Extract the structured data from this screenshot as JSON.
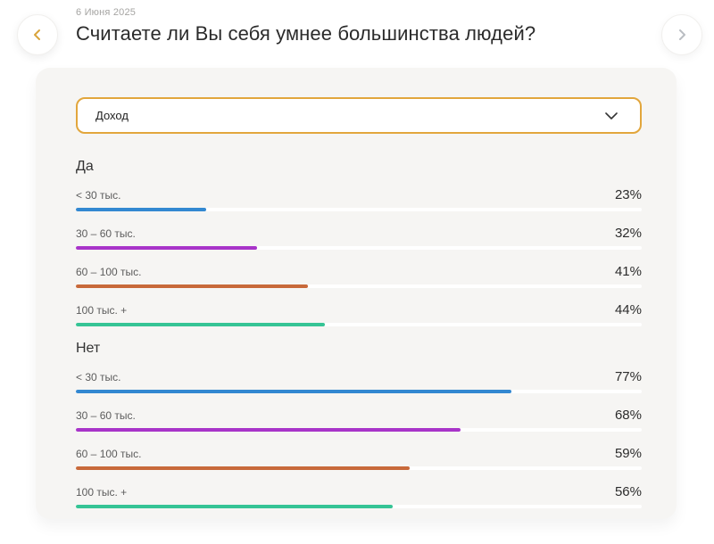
{
  "header": {
    "date": "6 Июня 2025",
    "title": "Считаете ли Вы себя умнее большинства людей?"
  },
  "filter_dropdown": {
    "value": "Доход"
  },
  "colors": {
    "accent_gold": "#e2a63c",
    "prev_chevron": "#d9a43c",
    "next_chevron": "#b9bdc2",
    "card_background": "#f6f5f3",
    "bar_track": "#ffffff"
  },
  "chart_data": {
    "type": "bar",
    "title": "Считаете ли Вы себя умнее большинства людей?",
    "subtitle_date": "6 Июня 2025",
    "filter": "Доход",
    "categories": [
      "< 30 тыс.",
      "30 – 60 тыс.",
      "60 – 100 тыс.",
      "100 тыс. +"
    ],
    "groups": [
      {
        "label": "Да",
        "values": [
          23,
          32,
          41,
          44
        ]
      },
      {
        "label": "Нет",
        "values": [
          77,
          68,
          59,
          56
        ]
      }
    ],
    "bar_colors": [
      "#3388d1",
      "#a834c9",
      "#c8693a",
      "#36c495"
    ],
    "value_suffix": "%",
    "xlim": [
      0,
      100
    ],
    "grid": false,
    "legend": false
  }
}
